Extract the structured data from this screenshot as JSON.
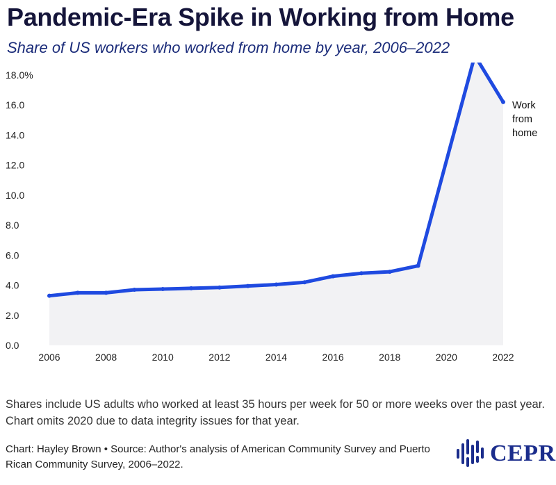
{
  "title": "Pandemic-Era Spike in Working from Home",
  "subtitle": "Share of US workers who worked from home by year, 2006–2022",
  "note": "Shares include US adults who worked at least 35 hours per week for 50 or more weeks over the past year. Chart omits 2020 due to data integrity issues for that year.",
  "source": "Chart: Hayley Brown • Source: Author's analysis of American Community Survey and Puerto Rican Community Survey, 2006–2022.",
  "logo": {
    "text": "CEPR",
    "icon": "cepr-logo-icon"
  },
  "colors": {
    "line": "#1f4ae0",
    "area": "#f2f2f4",
    "title": "#15153a",
    "subtitle": "#1b2c7a",
    "logo": "#1b2d8c"
  },
  "chart_data": {
    "type": "area",
    "x": [
      2006,
      2007,
      2008,
      2009,
      2010,
      2011,
      2012,
      2013,
      2014,
      2015,
      2016,
      2017,
      2018,
      2019,
      2021,
      2022
    ],
    "series": [
      {
        "name": "Work from home",
        "values": [
          3.3,
          3.5,
          3.5,
          3.7,
          3.75,
          3.8,
          3.85,
          3.95,
          4.05,
          4.2,
          4.6,
          4.8,
          4.9,
          5.3,
          19.3,
          16.2
        ]
      }
    ],
    "series_label_lines": [
      "Work",
      "from",
      "home"
    ],
    "x_ticks": [
      "2006",
      "2008",
      "2010",
      "2012",
      "2014",
      "2016",
      "2018",
      "2020",
      "2022"
    ],
    "y_ticks": [
      "0.0",
      "2.0",
      "4.0",
      "6.0",
      "8.0",
      "10.0",
      "12.0",
      "14.0",
      "16.0",
      "18.0%"
    ],
    "xlim": [
      2006,
      2022
    ],
    "ylim": [
      0,
      18
    ],
    "grid": false,
    "legend": "none (direct label at line end)"
  }
}
